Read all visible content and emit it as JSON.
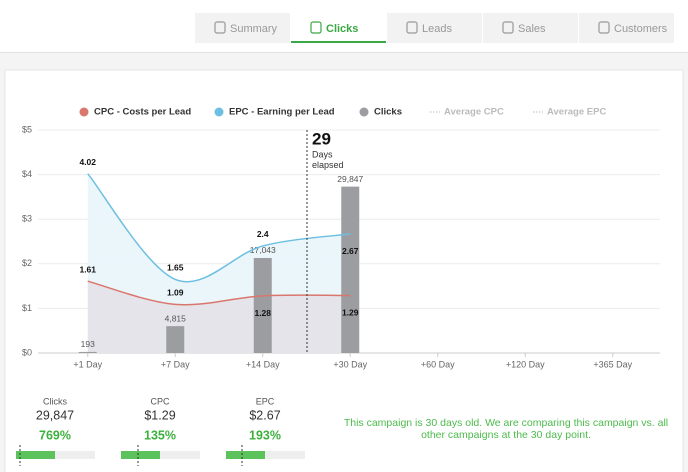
{
  "tabs": [
    "Summary",
    "Clicks",
    "Leads",
    "Sales",
    "Customers"
  ],
  "active_tab": 1,
  "chart_data": {
    "type": "line",
    "categories": [
      "+1 Day",
      "+7 Day",
      "+14 Day",
      "+30 Day",
      "+60 Day",
      "+120 Day",
      "+365 Day"
    ],
    "series": [
      {
        "name": "CPC - Costs per Lead",
        "color": "#d9776d",
        "values": [
          1.61,
          1.09,
          1.28,
          1.29,
          null,
          null,
          null
        ]
      },
      {
        "name": "EPC - Earning per Lead",
        "color": "#6cbfe2",
        "values": [
          4.02,
          1.65,
          2.4,
          2.67,
          null,
          null,
          null
        ]
      },
      {
        "name": "Clicks",
        "color": "#9b9da1",
        "type": "bar",
        "axis": "y2",
        "values": [
          193,
          4815,
          17043,
          29847,
          null,
          null,
          null
        ],
        "value_labels": [
          "193",
          "4,815",
          "17,043",
          "29,847",
          null,
          null,
          null
        ]
      },
      {
        "name": "Average CPC",
        "color": "#bbbbbb",
        "style": "dotted",
        "values": [
          null,
          null,
          null,
          null,
          null,
          null,
          null
        ]
      },
      {
        "name": "Average EPC",
        "color": "#bbbbbb",
        "style": "dotted",
        "values": [
          null,
          null,
          null,
          null,
          null,
          null,
          null
        ]
      }
    ],
    "ylim": [
      0,
      5
    ],
    "yticks": [
      {
        "value": 0,
        "label": "$0"
      },
      {
        "value": 1,
        "label": "$1"
      },
      {
        "value": 2,
        "label": "$2"
      },
      {
        "value": 3,
        "label": "$3"
      },
      {
        "value": 4,
        "label": "$4"
      },
      {
        "value": 5,
        "label": "$5"
      }
    ],
    "y2lim": [
      0,
      40000
    ],
    "grid": true,
    "annotation": {
      "value": 29,
      "text": [
        "Days",
        "elapsed"
      ]
    }
  },
  "stats": [
    {
      "label": "Clicks",
      "value": "29,847",
      "change": "769%"
    },
    {
      "label": "CPC",
      "value": "$1.29",
      "change": "135%"
    },
    {
      "label": "EPC",
      "value": "$2.67",
      "change": "193%"
    }
  ],
  "message": "This campaign is 30 days old. We are comparing this campaign vs. all other campaigns at the 30 day point."
}
